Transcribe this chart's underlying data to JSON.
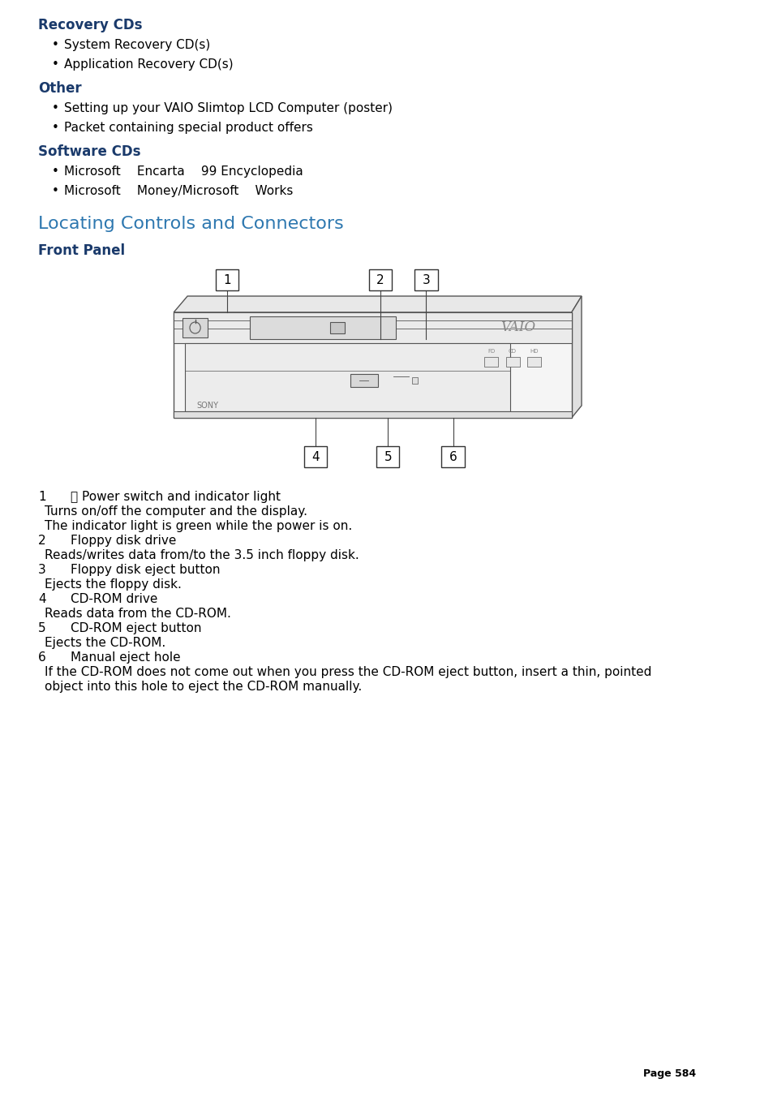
{
  "bg_color": "#ffffff",
  "dark_blue": "#1a3a6b",
  "teal_blue": "#2e78b0",
  "black": "#000000",
  "section1_title": "Recovery CDs",
  "section1_bullets": [
    "System Recovery CD(s)",
    "Application Recovery CD(s)"
  ],
  "section2_title": "Other",
  "section2_bullets": [
    "Setting up your VAIO Slimtop LCD Computer (poster)",
    "Packet containing special product offers"
  ],
  "section3_title": "Software CDs",
  "section3_bullets": [
    "Microsoft  Encarta  99 Encyclopedia",
    "Microsoft  Money/Microsoft  Works"
  ],
  "heading_locating": "Locating Controls and Connectors",
  "subheading_front": "Front Panel",
  "page_number": "Page 584"
}
